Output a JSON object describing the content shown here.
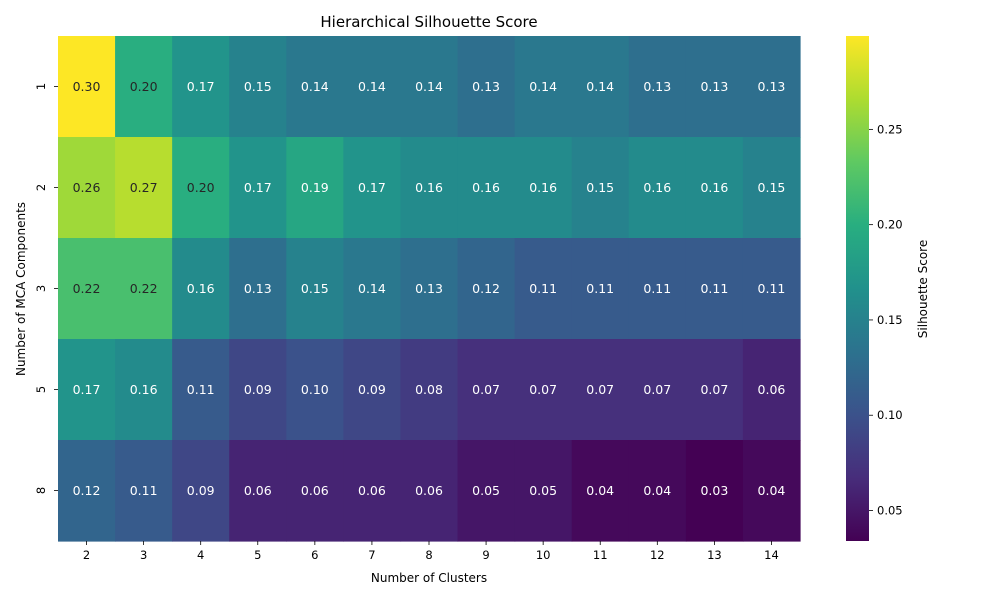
{
  "chart_data": {
    "type": "heatmap",
    "title": "Hierarchical Silhouette Score",
    "xlabel": "Number of Clusters",
    "ylabel": "Number of MCA Components",
    "x_categories": [
      "2",
      "3",
      "4",
      "5",
      "6",
      "7",
      "8",
      "9",
      "10",
      "11",
      "12",
      "13",
      "14"
    ],
    "y_categories": [
      "1",
      "2",
      "3",
      "5",
      "8"
    ],
    "values": [
      [
        0.3,
        0.2,
        0.17,
        0.15,
        0.14,
        0.14,
        0.14,
        0.13,
        0.14,
        0.14,
        0.13,
        0.13,
        0.13
      ],
      [
        0.26,
        0.27,
        0.2,
        0.17,
        0.19,
        0.17,
        0.16,
        0.16,
        0.16,
        0.15,
        0.16,
        0.16,
        0.15
      ],
      [
        0.22,
        0.22,
        0.16,
        0.13,
        0.15,
        0.14,
        0.13,
        0.12,
        0.11,
        0.11,
        0.11,
        0.11,
        0.11
      ],
      [
        0.17,
        0.16,
        0.11,
        0.09,
        0.1,
        0.09,
        0.08,
        0.07,
        0.07,
        0.07,
        0.07,
        0.07,
        0.06
      ],
      [
        0.12,
        0.11,
        0.09,
        0.06,
        0.06,
        0.06,
        0.06,
        0.05,
        0.05,
        0.04,
        0.04,
        0.03,
        0.04
      ]
    ],
    "colormap": "viridis",
    "colorbar": {
      "label": "Silhouette Score",
      "range": [
        0.034,
        0.299
      ],
      "ticks": [
        "0.05",
        "0.10",
        "0.15",
        "0.20",
        "0.25"
      ]
    },
    "grid": false,
    "legend": "colorbar-right"
  }
}
